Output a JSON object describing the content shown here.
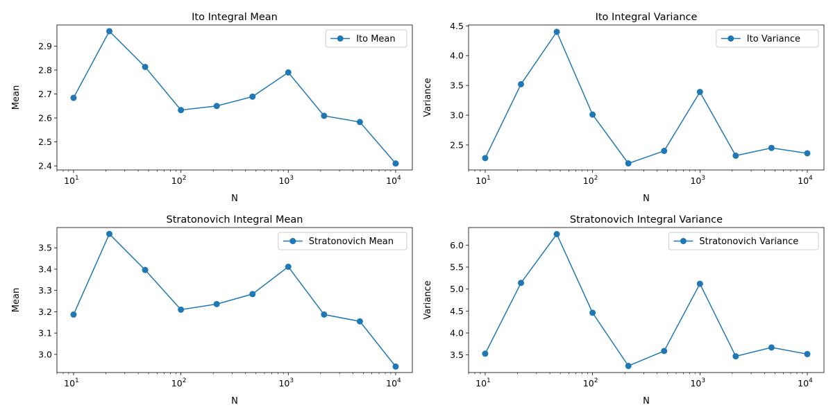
{
  "chart_data": [
    {
      "type": "line",
      "title": "Ito Integral Mean",
      "xlabel": "N",
      "ylabel": "Mean",
      "xscale": "log",
      "x": [
        10,
        21.544,
        46.416,
        100,
        215.44,
        464.16,
        1000,
        2154.4,
        4641.6,
        10000
      ],
      "xlim": [
        7.0,
        14300
      ],
      "ylim": [
        2.383,
        2.988
      ],
      "yticks": [
        2.4,
        2.5,
        2.6,
        2.7,
        2.8,
        2.9
      ],
      "ytick_labels": [
        "2.4",
        "2.5",
        "2.6",
        "2.7",
        "2.8",
        "2.9"
      ],
      "xticks": [
        10,
        100,
        1000,
        10000
      ],
      "xtick_labels": [
        [
          "10",
          "1"
        ],
        [
          "10",
          "2"
        ],
        [
          "10",
          "3"
        ],
        [
          "10",
          "4"
        ]
      ],
      "series": [
        {
          "name": "Ito Mean",
          "color": "#1f77b4",
          "marker": "circle",
          "values": [
            2.684,
            2.962,
            2.813,
            2.633,
            2.65,
            2.689,
            2.79,
            2.609,
            2.583,
            2.41
          ]
        }
      ],
      "legend": "top-right",
      "grid": false
    },
    {
      "type": "line",
      "title": "Ito Integral Variance",
      "xlabel": "N",
      "ylabel": "Variance",
      "xscale": "log",
      "x": [
        10,
        21.544,
        46.416,
        100,
        215.44,
        464.16,
        1000,
        2154.4,
        4641.6,
        10000
      ],
      "xlim": [
        7.0,
        14300
      ],
      "ylim": [
        2.08,
        4.515
      ],
      "yticks": [
        2.5,
        3.0,
        3.5,
        4.0,
        4.5
      ],
      "ytick_labels": [
        "2.5",
        "3.0",
        "3.5",
        "4.0",
        "4.5"
      ],
      "xticks": [
        10,
        100,
        1000,
        10000
      ],
      "xtick_labels": [
        [
          "10",
          "1"
        ],
        [
          "10",
          "2"
        ],
        [
          "10",
          "3"
        ],
        [
          "10",
          "4"
        ]
      ],
      "series": [
        {
          "name": "Ito Variance",
          "color": "#1f77b4",
          "marker": "circle",
          "values": [
            2.28,
            3.52,
            4.4,
            3.01,
            2.19,
            2.4,
            3.39,
            2.32,
            2.45,
            2.36
          ]
        }
      ],
      "legend": "top-right",
      "grid": false
    },
    {
      "type": "line",
      "title": "Stratonovich Integral Mean",
      "xlabel": "N",
      "ylabel": "Mean",
      "xscale": "log",
      "x": [
        10,
        21.544,
        46.416,
        100,
        215.44,
        464.16,
        1000,
        2154.4,
        4641.6,
        10000
      ],
      "xlim": [
        7.0,
        14300
      ],
      "ylim": [
        2.915,
        3.595
      ],
      "yticks": [
        3.0,
        3.1,
        3.2,
        3.3,
        3.4,
        3.5
      ],
      "ytick_labels": [
        "3.0",
        "3.1",
        "3.2",
        "3.3",
        "3.4",
        "3.5"
      ],
      "xticks": [
        10,
        100,
        1000,
        10000
      ],
      "xtick_labels": [
        [
          "10",
          "1"
        ],
        [
          "10",
          "2"
        ],
        [
          "10",
          "3"
        ],
        [
          "10",
          "4"
        ]
      ],
      "series": [
        {
          "name": "Stratonovich Mean",
          "color": "#1f77b4",
          "marker": "circle",
          "values": [
            3.187,
            3.565,
            3.396,
            3.21,
            3.236,
            3.283,
            3.411,
            3.187,
            3.155,
            2.943
          ]
        }
      ],
      "legend": "top-right",
      "grid": false
    },
    {
      "type": "line",
      "title": "Stratonovich Integral Variance",
      "xlabel": "N",
      "ylabel": "Variance",
      "xscale": "log",
      "x": [
        10,
        21.544,
        46.416,
        100,
        215.44,
        464.16,
        1000,
        2154.4,
        4641.6,
        10000
      ],
      "xlim": [
        7.0,
        14300
      ],
      "ylim": [
        3.1,
        6.4
      ],
      "yticks": [
        3.5,
        4.0,
        4.5,
        5.0,
        5.5,
        6.0
      ],
      "ytick_labels": [
        "3.5",
        "4.0",
        "4.5",
        "5.0",
        "5.5",
        "6.0"
      ],
      "xticks": [
        10,
        100,
        1000,
        10000
      ],
      "xtick_labels": [
        [
          "10",
          "1"
        ],
        [
          "10",
          "2"
        ],
        [
          "10",
          "3"
        ],
        [
          "10",
          "4"
        ]
      ],
      "series": [
        {
          "name": "Stratonovich Variance",
          "color": "#1f77b4",
          "marker": "circle",
          "values": [
            3.53,
            5.14,
            6.25,
            4.46,
            3.25,
            3.59,
            5.12,
            3.47,
            3.67,
            3.52
          ]
        }
      ],
      "legend": "top-right",
      "grid": false
    }
  ]
}
